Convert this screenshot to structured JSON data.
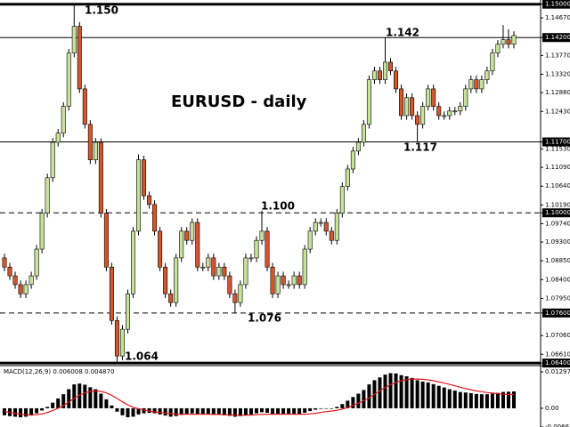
{
  "chart_data": [
    {
      "type": "candlestick",
      "title": "EURUSD - daily",
      "up_color": "#c8e29a",
      "down_color": "#d2582c",
      "open": [
        1.0892,
        1.087,
        1.0849,
        1.0828,
        1.0806,
        1.0828,
        1.0849,
        1.0913,
        1.0999,
        1.1084,
        1.1169,
        1.1191,
        1.1255,
        1.1383,
        1.1447,
        1.1297,
        1.1212,
        1.1127,
        1.1169,
        1.0999,
        1.087,
        1.0742,
        1.0657,
        1.0721,
        1.0806,
        1.0956,
        1.1127,
        1.1041,
        1.102,
        1.0956,
        1.087,
        1.0806,
        1.0785,
        1.0892,
        1.0956,
        1.0934,
        1.0977,
        1.087,
        1.087,
        1.0892,
        1.0849,
        1.087,
        1.0849,
        1.0806,
        1.0785,
        1.0828,
        1.0892,
        1.0892,
        1.0934,
        1.0956,
        1.087,
        1.0806,
        1.0849,
        1.0828,
        1.0828,
        1.0849,
        1.0828,
        1.0913,
        1.0956,
        1.0977,
        1.0977,
        1.0956,
        1.0934,
        1.0999,
        1.1063,
        1.1105,
        1.1148,
        1.1169,
        1.1212,
        1.1319,
        1.134,
        1.1319,
        1.1361,
        1.134,
        1.1297,
        1.1233,
        1.1276,
        1.1233,
        1.1212,
        1.1255,
        1.1297,
        1.1255,
        1.1233,
        1.1233,
        1.1244,
        1.1244,
        1.1255,
        1.1297,
        1.1319,
        1.1297,
        1.1319,
        1.134,
        1.1383,
        1.1404,
        1.1415,
        1.1404
      ],
      "high": [
        1.0902,
        1.088,
        1.0859,
        1.0838,
        1.0838,
        1.0859,
        1.0923,
        1.1009,
        1.1094,
        1.1179,
        1.1201,
        1.1265,
        1.1393,
        1.1498,
        1.1457,
        1.1307,
        1.1222,
        1.1179,
        1.1179,
        1.1009,
        1.088,
        1.0752,
        1.0731,
        1.0816,
        1.0966,
        1.114,
        1.1137,
        1.1051,
        1.103,
        1.0966,
        1.088,
        1.0816,
        1.0902,
        1.0966,
        1.0966,
        1.0987,
        1.0987,
        1.088,
        1.0902,
        1.0902,
        1.088,
        1.088,
        1.0859,
        1.0816,
        1.0838,
        1.0902,
        1.0902,
        1.0944,
        1.1005,
        1.0966,
        1.088,
        1.0859,
        1.0859,
        1.0838,
        1.0859,
        1.0859,
        1.0923,
        1.0966,
        1.0987,
        1.0987,
        1.0987,
        1.0966,
        1.1009,
        1.1073,
        1.1115,
        1.1158,
        1.1179,
        1.1222,
        1.1329,
        1.135,
        1.135,
        1.142,
        1.1371,
        1.135,
        1.1307,
        1.1286,
        1.1286,
        1.1243,
        1.1265,
        1.1307,
        1.1307,
        1.1265,
        1.1243,
        1.1254,
        1.1254,
        1.1265,
        1.1307,
        1.1329,
        1.1329,
        1.1329,
        1.135,
        1.1393,
        1.1414,
        1.145,
        1.144,
        1.1435
      ],
      "low": [
        1.086,
        1.0839,
        1.0818,
        1.0796,
        1.0796,
        1.0818,
        1.0839,
        1.0903,
        1.0989,
        1.1074,
        1.1159,
        1.1181,
        1.1245,
        1.1373,
        1.1287,
        1.1202,
        1.1117,
        1.1117,
        1.0989,
        1.086,
        1.0732,
        1.064,
        1.0647,
        1.0711,
        1.0796,
        1.0946,
        1.1031,
        1.101,
        1.0946,
        1.086,
        1.0796,
        1.0775,
        1.0775,
        1.0882,
        1.0924,
        1.0924,
        1.086,
        1.086,
        1.086,
        1.0839,
        1.0839,
        1.0839,
        1.0796,
        1.076,
        1.0775,
        1.0818,
        1.0882,
        1.0882,
        1.0924,
        1.086,
        1.0796,
        1.0796,
        1.0818,
        1.0818,
        1.0818,
        1.0818,
        1.0818,
        1.0903,
        1.0946,
        1.0967,
        1.0946,
        1.0924,
        1.0924,
        1.0989,
        1.1053,
        1.1095,
        1.1138,
        1.1159,
        1.1202,
        1.1309,
        1.1309,
        1.1309,
        1.133,
        1.1287,
        1.1223,
        1.1223,
        1.1223,
        1.117,
        1.1202,
        1.1245,
        1.1245,
        1.1223,
        1.1223,
        1.1223,
        1.1234,
        1.1234,
        1.1245,
        1.1287,
        1.1287,
        1.1287,
        1.1309,
        1.133,
        1.1373,
        1.1394,
        1.1394,
        1.1394
      ],
      "close": [
        1.087,
        1.0849,
        1.0828,
        1.0806,
        1.0828,
        1.0849,
        1.0913,
        1.0999,
        1.1084,
        1.1169,
        1.1191,
        1.1255,
        1.1383,
        1.1447,
        1.1297,
        1.1212,
        1.1127,
        1.1169,
        1.0999,
        1.087,
        1.0742,
        1.0657,
        1.0721,
        1.0806,
        1.0956,
        1.1127,
        1.1041,
        1.102,
        1.0956,
        1.087,
        1.0806,
        1.0785,
        1.0892,
        1.0956,
        1.0934,
        1.0977,
        1.087,
        1.087,
        1.0892,
        1.0849,
        1.087,
        1.0849,
        1.0806,
        1.0785,
        1.0828,
        1.0892,
        1.0892,
        1.0934,
        1.0956,
        1.087,
        1.0806,
        1.0849,
        1.0828,
        1.0828,
        1.0849,
        1.0828,
        1.0913,
        1.0956,
        1.0977,
        1.0977,
        1.0956,
        1.0934,
        1.0999,
        1.1063,
        1.1105,
        1.1148,
        1.1169,
        1.1212,
        1.1319,
        1.134,
        1.1319,
        1.1361,
        1.134,
        1.1297,
        1.1233,
        1.1276,
        1.1233,
        1.1212,
        1.1255,
        1.1297,
        1.1255,
        1.1233,
        1.1233,
        1.1244,
        1.1244,
        1.1255,
        1.1297,
        1.1319,
        1.1297,
        1.1319,
        1.134,
        1.1383,
        1.1404,
        1.1415,
        1.1404,
        1.1425
      ],
      "ylim": [
        1.0636,
        1.151
      ],
      "yticks": [
        {
          "value": 1.15,
          "label": "1.15000"
        },
        {
          "value": 1.1467,
          "label": "1.14670"
        },
        {
          "value": 1.142,
          "label": "1.14200"
        },
        {
          "value": 1.1377,
          "label": "1.13770"
        },
        {
          "value": 1.1332,
          "label": "1.13320"
        },
        {
          "value": 1.1288,
          "label": "1.12880"
        },
        {
          "value": 1.1243,
          "label": "1.12430"
        },
        {
          "value": 1.117,
          "label": "1.11700"
        },
        {
          "value": 1.1153,
          "label": "1.11530"
        },
        {
          "value": 1.1109,
          "label": "1.11090"
        },
        {
          "value": 1.1064,
          "label": "1.10640"
        },
        {
          "value": 1.1019,
          "label": "1.10190"
        },
        {
          "value": 1.1,
          "label": "1.10000"
        },
        {
          "value": 1.0974,
          "label": "1.09740"
        },
        {
          "value": 1.093,
          "label": "1.09300"
        },
        {
          "value": 1.0885,
          "label": "1.08850"
        },
        {
          "value": 1.084,
          "label": "1.08400"
        },
        {
          "value": 1.0795,
          "label": "1.07950"
        },
        {
          "value": 1.076,
          "label": "1.07600"
        },
        {
          "value": 1.0706,
          "label": "1.07060"
        },
        {
          "value": 1.0661,
          "label": "1.06610"
        },
        {
          "value": 1.064,
          "label": "1.06400"
        }
      ],
      "levels": [
        {
          "value": 1.15,
          "label": "1.150",
          "style": "solid"
        },
        {
          "value": 1.142,
          "label": "1.142",
          "style": "solid"
        },
        {
          "value": 1.117,
          "label": "1.117",
          "style": "solid"
        },
        {
          "value": 1.1,
          "label": "1.100",
          "style": "dashed"
        },
        {
          "value": 1.076,
          "label": "1.076",
          "style": "dashed"
        },
        {
          "value": 1.064,
          "label": "1.064",
          "style": "solid"
        }
      ]
    },
    {
      "type": "macd",
      "label": "MACD(12,26,9) 0.006008 0.004870",
      "histogram_color": "#000000",
      "signal_color": "#e01818",
      "histogram": [
        -0.0025,
        -0.0028,
        -0.003,
        -0.0032,
        -0.003,
        -0.0026,
        -0.0018,
        -0.0008,
        0.0005,
        0.002,
        0.0035,
        0.005,
        0.0068,
        0.0085,
        0.0088,
        0.0084,
        0.0075,
        0.0068,
        0.0052,
        0.0032,
        0.001,
        -0.0012,
        -0.0025,
        -0.0032,
        -0.003,
        -0.0022,
        -0.0018,
        -0.0016,
        -0.0018,
        -0.0022,
        -0.0026,
        -0.003,
        -0.0028,
        -0.0024,
        -0.0022,
        -0.0018,
        -0.002,
        -0.0022,
        -0.0022,
        -0.0024,
        -0.0024,
        -0.0025,
        -0.0027,
        -0.003,
        -0.0028,
        -0.0024,
        -0.0022,
        -0.0018,
        -0.0014,
        -0.0016,
        -0.002,
        -0.002,
        -0.0021,
        -0.0022,
        -0.0021,
        -0.0022,
        -0.0016,
        -0.001,
        -0.0005,
        -0.0002,
        -0.0001,
        -0.0002,
        0.0005,
        0.0015,
        0.0027,
        0.004,
        0.0052,
        0.0065,
        0.0085,
        0.01,
        0.011,
        0.012,
        0.0125,
        0.0124,
        0.0118,
        0.0114,
        0.0108,
        0.01,
        0.0095,
        0.0092,
        0.0086,
        0.008,
        0.0074,
        0.0068,
        0.0063,
        0.0058,
        0.0056,
        0.0054,
        0.0051,
        0.005,
        0.005,
        0.0052,
        0.0055,
        0.0058,
        0.0059,
        0.006
      ],
      "signal": [
        -0.001,
        -0.0015,
        -0.0018,
        -0.0021,
        -0.0023,
        -0.0024,
        -0.0023,
        -0.002,
        -0.0015,
        -0.0008,
        0.0,
        0.001,
        0.0022,
        0.0035,
        0.0047,
        0.0055,
        0.006,
        0.0062,
        0.006,
        0.0055,
        0.0046,
        0.0035,
        0.0023,
        0.0012,
        0.0004,
        -0.0002,
        -0.0006,
        -0.001,
        -0.0013,
        -0.0015,
        -0.0017,
        -0.0019,
        -0.0021,
        -0.0021,
        -0.0021,
        -0.0021,
        -0.0021,
        -0.0021,
        -0.0021,
        -0.0022,
        -0.0022,
        -0.0023,
        -0.0023,
        -0.0024,
        -0.0025,
        -0.0025,
        -0.0024,
        -0.0023,
        -0.0022,
        -0.0021,
        -0.0021,
        -0.0021,
        -0.0021,
        -0.0021,
        -0.0021,
        -0.0021,
        -0.0021,
        -0.002,
        -0.0018,
        -0.0015,
        -0.0012,
        -0.001,
        -0.0007,
        -0.0003,
        0.0003,
        0.001,
        0.0018,
        0.0027,
        0.0038,
        0.005,
        0.0062,
        0.0074,
        0.0084,
        0.0092,
        0.0098,
        0.0102,
        0.0104,
        0.0104,
        0.0103,
        0.0101,
        0.0098,
        0.0094,
        0.009,
        0.0085,
        0.008,
        0.0075,
        0.007,
        0.0066,
        0.0062,
        0.0059,
        0.0056,
        0.0054,
        0.0052,
        0.005,
        0.0049,
        0.0049
      ],
      "ylim": [
        -0.006672,
        0.012978
      ],
      "yticks": [
        0.012978,
        {
          "value": 0,
          "label": "0.00"
        },
        -0.006672
      ]
    }
  ]
}
